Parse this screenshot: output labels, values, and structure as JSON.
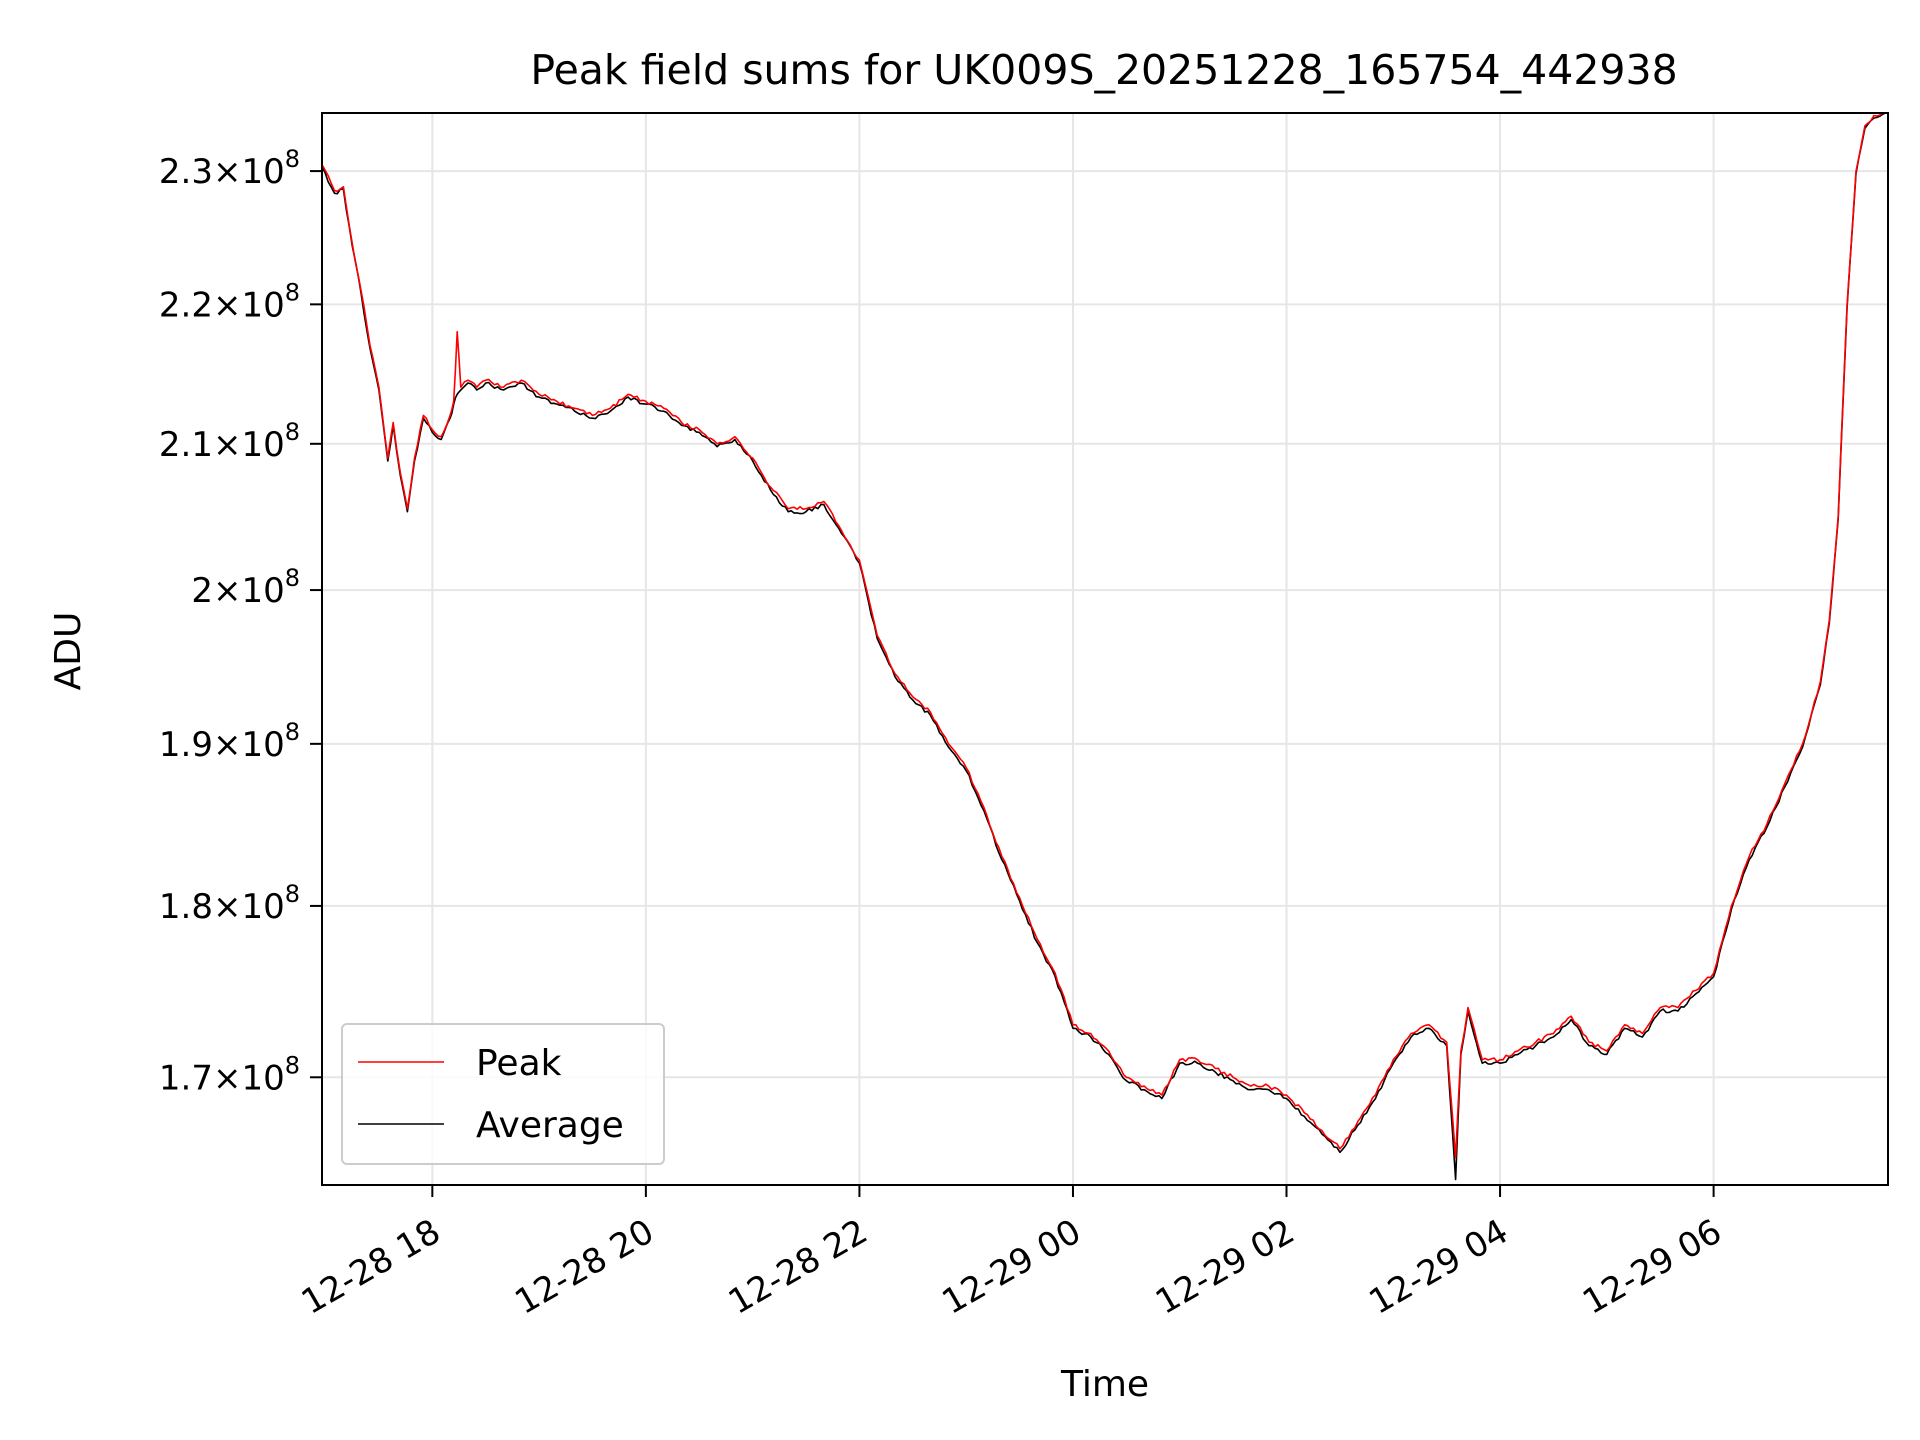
{
  "chart_data": {
    "type": "line",
    "title": "Peak field sums for UK009S_20251228_165754_442938",
    "xlabel": "Time",
    "ylabel": "ADU",
    "x_type": "datetime",
    "y_scale": "log",
    "xlim": [
      "2025-12-28 16:58",
      "2025-12-29 07:38"
    ],
    "ylim": [
      164000000,
      234500000
    ],
    "x_ticks": [
      {
        "value": "2025-12-28 18:00",
        "label": "12-28 18"
      },
      {
        "value": "2025-12-28 20:00",
        "label": "12-28 20"
      },
      {
        "value": "2025-12-28 22:00",
        "label": "12-28 22"
      },
      {
        "value": "2025-12-29 00:00",
        "label": "12-29 00"
      },
      {
        "value": "2025-12-29 02:00",
        "label": "12-29 02"
      },
      {
        "value": "2025-12-29 04:00",
        "label": "12-29 04"
      },
      {
        "value": "2025-12-29 06:00",
        "label": "12-29 06"
      }
    ],
    "y_ticks": [
      {
        "value": 170000000,
        "mantissa": "1.7",
        "base": "10",
        "exp": "8"
      },
      {
        "value": 180000000,
        "mantissa": "1.8",
        "base": "10",
        "exp": "8"
      },
      {
        "value": 190000000,
        "mantissa": "1.9",
        "base": "10",
        "exp": "8"
      },
      {
        "value": 200000000,
        "mantissa": "2",
        "base": "10",
        "exp": "8"
      },
      {
        "value": 210000000,
        "mantissa": "2.1",
        "base": "10",
        "exp": "8"
      },
      {
        "value": 220000000,
        "mantissa": "2.2",
        "base": "10",
        "exp": "8"
      },
      {
        "value": 230000000,
        "mantissa": "2.3",
        "base": "10",
        "exp": "8"
      }
    ],
    "grid": true,
    "legend": {
      "position": "lower-left",
      "entries": [
        "Peak",
        "Average"
      ]
    },
    "series": [
      {
        "name": "Peak",
        "color": "#ff0000",
        "x": [
          "2025-12-28 16:58",
          "2025-12-28 17:05",
          "2025-12-28 17:10",
          "2025-12-28 17:15",
          "2025-12-28 17:20",
          "2025-12-28 17:25",
          "2025-12-28 17:30",
          "2025-12-28 17:35",
          "2025-12-28 17:38",
          "2025-12-28 17:42",
          "2025-12-28 17:46",
          "2025-12-28 17:50",
          "2025-12-28 17:55",
          "2025-12-28 18:00",
          "2025-12-28 18:05",
          "2025-12-28 18:10",
          "2025-12-28 18:12",
          "2025-12-28 18:14",
          "2025-12-28 18:16",
          "2025-12-28 18:20",
          "2025-12-28 18:25",
          "2025-12-28 18:30",
          "2025-12-28 18:40",
          "2025-12-28 18:50",
          "2025-12-28 19:00",
          "2025-12-28 19:10",
          "2025-12-28 19:20",
          "2025-12-28 19:30",
          "2025-12-28 19:40",
          "2025-12-28 19:50",
          "2025-12-28 20:00",
          "2025-12-28 20:10",
          "2025-12-28 20:20",
          "2025-12-28 20:30",
          "2025-12-28 20:40",
          "2025-12-28 20:50",
          "2025-12-28 21:00",
          "2025-12-28 21:10",
          "2025-12-28 21:20",
          "2025-12-28 21:30",
          "2025-12-28 21:40",
          "2025-12-28 21:50",
          "2025-12-28 22:00",
          "2025-12-28 22:10",
          "2025-12-28 22:20",
          "2025-12-28 22:30",
          "2025-12-28 22:40",
          "2025-12-28 22:50",
          "2025-12-28 23:00",
          "2025-12-28 23:10",
          "2025-12-28 23:20",
          "2025-12-28 23:30",
          "2025-12-28 23:40",
          "2025-12-28 23:50",
          "2025-12-29 00:00",
          "2025-12-29 00:10",
          "2025-12-29 00:20",
          "2025-12-29 00:30",
          "2025-12-29 00:40",
          "2025-12-29 00:50",
          "2025-12-29 01:00",
          "2025-12-29 01:10",
          "2025-12-29 01:20",
          "2025-12-29 01:30",
          "2025-12-29 01:40",
          "2025-12-29 01:50",
          "2025-12-29 02:00",
          "2025-12-29 02:10",
          "2025-12-29 02:20",
          "2025-12-29 02:30",
          "2025-12-29 02:40",
          "2025-12-29 02:50",
          "2025-12-29 03:00",
          "2025-12-29 03:10",
          "2025-12-29 03:20",
          "2025-12-29 03:30",
          "2025-12-29 03:35",
          "2025-12-29 03:38",
          "2025-12-29 03:42",
          "2025-12-29 03:50",
          "2025-12-29 04:00",
          "2025-12-29 04:10",
          "2025-12-29 04:20",
          "2025-12-29 04:30",
          "2025-12-29 04:40",
          "2025-12-29 04:50",
          "2025-12-29 05:00",
          "2025-12-29 05:10",
          "2025-12-29 05:20",
          "2025-12-29 05:30",
          "2025-12-29 05:40",
          "2025-12-29 05:50",
          "2025-12-29 06:00",
          "2025-12-29 06:10",
          "2025-12-29 06:20",
          "2025-12-29 06:30",
          "2025-12-29 06:40",
          "2025-12-29 06:50",
          "2025-12-29 07:00",
          "2025-12-29 07:05",
          "2025-12-29 07:10",
          "2025-12-29 07:15",
          "2025-12-29 07:20",
          "2025-12-29 07:25",
          "2025-12-29 07:30",
          "2025-12-29 07:35",
          "2025-12-29 07:38"
        ],
        "values": [
          230500000,
          228500000,
          228800000,
          224500000,
          221000000,
          217000000,
          214000000,
          209000000,
          211500000,
          208000000,
          205500000,
          209000000,
          212000000,
          211000000,
          210500000,
          212000000,
          213000000,
          218000000,
          214000000,
          214500000,
          214000000,
          214500000,
          214000000,
          214500000,
          213500000,
          213000000,
          212500000,
          212000000,
          212500000,
          213500000,
          213000000,
          212500000,
          211500000,
          211000000,
          210000000,
          210500000,
          209000000,
          207000000,
          205500000,
          205500000,
          206000000,
          204000000,
          202000000,
          197000000,
          194500000,
          193000000,
          192000000,
          190000000,
          188500000,
          186000000,
          183000000,
          180500000,
          178000000,
          176000000,
          173000000,
          172500000,
          171500000,
          170000000,
          169500000,
          169000000,
          171000000,
          171000000,
          170500000,
          170000000,
          169500000,
          169500000,
          169000000,
          168000000,
          167000000,
          166000000,
          167500000,
          169000000,
          171000000,
          172500000,
          173000000,
          172000000,
          165500000,
          171500000,
          174000000,
          171000000,
          171000000,
          171500000,
          172000000,
          172500000,
          173500000,
          172000000,
          171500000,
          173000000,
          172500000,
          174000000,
          174000000,
          175000000,
          176000000,
          180000000,
          183000000,
          185000000,
          187500000,
          190000000,
          194000000,
          198000000,
          205000000,
          220000000,
          230000000,
          233500000,
          234300000,
          234500000,
          234500000
        ]
      },
      {
        "name": "Average",
        "color": "#000000",
        "x": [
          "2025-12-28 16:58",
          "2025-12-28 17:05",
          "2025-12-28 17:10",
          "2025-12-28 17:15",
          "2025-12-28 17:20",
          "2025-12-28 17:25",
          "2025-12-28 17:30",
          "2025-12-28 17:35",
          "2025-12-28 17:38",
          "2025-12-28 17:42",
          "2025-12-28 17:46",
          "2025-12-28 17:50",
          "2025-12-28 17:55",
          "2025-12-28 18:00",
          "2025-12-28 18:05",
          "2025-12-28 18:10",
          "2025-12-28 18:12",
          "2025-12-28 18:14",
          "2025-12-28 18:16",
          "2025-12-28 18:20",
          "2025-12-28 18:25",
          "2025-12-28 18:30",
          "2025-12-28 18:40",
          "2025-12-28 18:50",
          "2025-12-28 19:00",
          "2025-12-28 19:10",
          "2025-12-28 19:20",
          "2025-12-28 19:30",
          "2025-12-28 19:40",
          "2025-12-28 19:50",
          "2025-12-28 20:00",
          "2025-12-28 20:10",
          "2025-12-28 20:20",
          "2025-12-28 20:30",
          "2025-12-28 20:40",
          "2025-12-28 20:50",
          "2025-12-28 21:00",
          "2025-12-28 21:10",
          "2025-12-28 21:20",
          "2025-12-28 21:30",
          "2025-12-28 21:40",
          "2025-12-28 21:50",
          "2025-12-28 22:00",
          "2025-12-28 22:10",
          "2025-12-28 22:20",
          "2025-12-28 22:30",
          "2025-12-28 22:40",
          "2025-12-28 22:50",
          "2025-12-28 23:00",
          "2025-12-28 23:10",
          "2025-12-28 23:20",
          "2025-12-28 23:30",
          "2025-12-28 23:40",
          "2025-12-28 23:50",
          "2025-12-29 00:00",
          "2025-12-29 00:10",
          "2025-12-29 00:20",
          "2025-12-29 00:30",
          "2025-12-29 00:40",
          "2025-12-29 00:50",
          "2025-12-29 01:00",
          "2025-12-29 01:10",
          "2025-12-29 01:20",
          "2025-12-29 01:30",
          "2025-12-29 01:40",
          "2025-12-29 01:50",
          "2025-12-29 02:00",
          "2025-12-29 02:10",
          "2025-12-29 02:20",
          "2025-12-29 02:30",
          "2025-12-29 02:40",
          "2025-12-29 02:50",
          "2025-12-29 03:00",
          "2025-12-29 03:10",
          "2025-12-29 03:20",
          "2025-12-29 03:30",
          "2025-12-29 03:35",
          "2025-12-29 03:38",
          "2025-12-29 03:42",
          "2025-12-29 03:50",
          "2025-12-29 04:00",
          "2025-12-29 04:10",
          "2025-12-29 04:20",
          "2025-12-29 04:30",
          "2025-12-29 04:40",
          "2025-12-29 04:50",
          "2025-12-29 05:00",
          "2025-12-29 05:10",
          "2025-12-29 05:20",
          "2025-12-29 05:30",
          "2025-12-29 05:40",
          "2025-12-29 05:50",
          "2025-12-29 06:00",
          "2025-12-29 06:10",
          "2025-12-29 06:20",
          "2025-12-29 06:30",
          "2025-12-29 06:40",
          "2025-12-29 06:50",
          "2025-12-29 07:00",
          "2025-12-29 07:05",
          "2025-12-29 07:10",
          "2025-12-29 07:15",
          "2025-12-29 07:20",
          "2025-12-29 07:25",
          "2025-12-29 07:30",
          "2025-12-29 07:35",
          "2025-12-29 07:38"
        ],
        "values": [
          230300000,
          228300000,
          228600000,
          224300000,
          220800000,
          216800000,
          213800000,
          208800000,
          211300000,
          207800000,
          205300000,
          208800000,
          211800000,
          210800000,
          210300000,
          211800000,
          212800000,
          213500000,
          213800000,
          214300000,
          213800000,
          214300000,
          213800000,
          214300000,
          213300000,
          212800000,
          212300000,
          211800000,
          212300000,
          213300000,
          212800000,
          212300000,
          211300000,
          210800000,
          209800000,
          210300000,
          208800000,
          206800000,
          205300000,
          205300000,
          205800000,
          203800000,
          201800000,
          196800000,
          194300000,
          192800000,
          191800000,
          189800000,
          188300000,
          185800000,
          182800000,
          180300000,
          177800000,
          175800000,
          172800000,
          172300000,
          171300000,
          169800000,
          169300000,
          168800000,
          170800000,
          170800000,
          170300000,
          169800000,
          169300000,
          169300000,
          168800000,
          167800000,
          166800000,
          165800000,
          167300000,
          168800000,
          170800000,
          172300000,
          172800000,
          171800000,
          164300000,
          171300000,
          173800000,
          170800000,
          170800000,
          171300000,
          171800000,
          172300000,
          173300000,
          171800000,
          171300000,
          172800000,
          172300000,
          173800000,
          173800000,
          174800000,
          175800000,
          179800000,
          182800000,
          184800000,
          187300000,
          189800000,
          193800000,
          197800000,
          204800000,
          219800000,
          229800000,
          233300000,
          234100000,
          234400000,
          234500000
        ]
      }
    ]
  }
}
